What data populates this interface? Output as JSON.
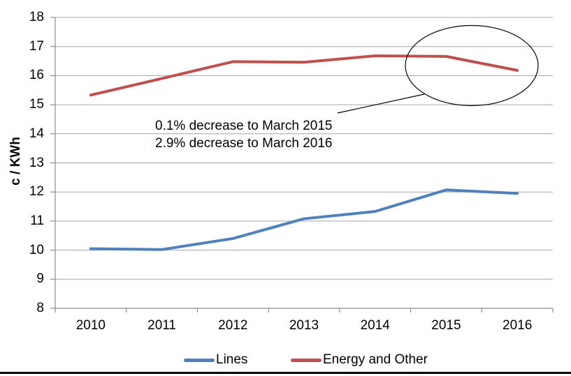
{
  "chart_data": {
    "type": "line",
    "title": "",
    "ylabel": "c / KWh",
    "categories": [
      "2010",
      "2011",
      "2012",
      "2013",
      "2014",
      "2015",
      "2016"
    ],
    "y_ticks": [
      18,
      17,
      16,
      15,
      14,
      13,
      12,
      11,
      10,
      9,
      8
    ],
    "ylim": [
      8,
      18
    ],
    "grid": "horizontal-major",
    "legend_position": "bottom-center",
    "series": [
      {
        "name": "Lines",
        "color": "#4F81BD",
        "values": [
          10.05,
          10.02,
          10.4,
          11.08,
          11.33,
          12.07,
          11.95
        ]
      },
      {
        "name": "Energy and Other",
        "color": "#C0504D",
        "values": [
          15.33,
          15.9,
          16.48,
          16.46,
          16.68,
          16.66,
          16.18
        ]
      }
    ],
    "annotation": {
      "lines": [
        "0.1% decrease to March 2015",
        "2.9% decrease to March 2016"
      ],
      "highlight": "ellipse around the 2015-2016 segment of Energy and Other"
    },
    "colors": {
      "grid": "#A6A6A6",
      "axis": "#8C8C8C",
      "annotation_ink": "#000000",
      "text": "#000000"
    }
  }
}
